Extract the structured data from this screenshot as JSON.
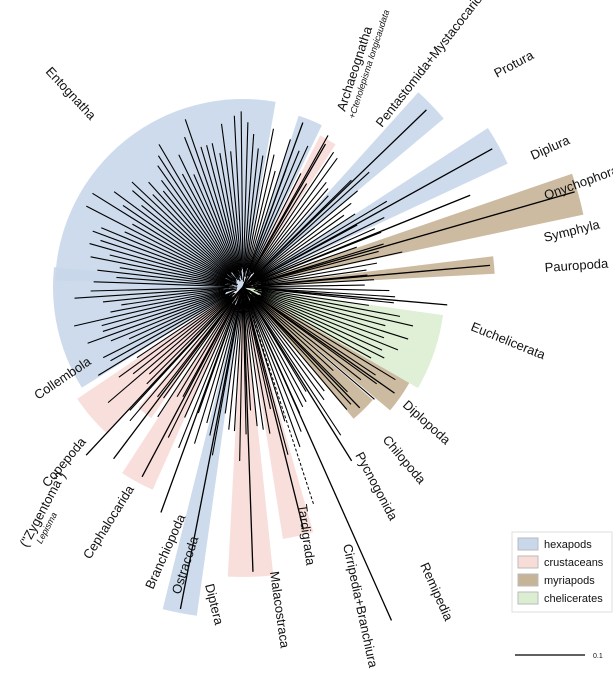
{
  "labels": [
    {
      "text": "Entognatha"
    },
    {
      "text": "Archaeognatha",
      "sub": "+Ctenolepisma longicaudata"
    },
    {
      "text": "Pentastomida+Mystacocarida"
    },
    {
      "text": "Protura"
    },
    {
      "text": "Diplura"
    },
    {
      "text": "Onychophora"
    },
    {
      "text": "Symphyla"
    },
    {
      "text": "Pauropoda"
    },
    {
      "text": "Euchelicerata"
    },
    {
      "text": "Diplopoda"
    },
    {
      "text": "Chilopoda"
    },
    {
      "text": "Pycnogonida"
    },
    {
      "text": "Remipedia"
    },
    {
      "text": "Cirripedia+Branchiura"
    },
    {
      "text": "Tardigrada"
    },
    {
      "text": "Malacostraca"
    },
    {
      "text": "Diptera"
    },
    {
      "text": "Ostracoda"
    },
    {
      "text": "Branchiopoda"
    },
    {
      "text": "Cephalocarida"
    },
    {
      "text": "(\"Zygentoma\")",
      "sub": "Lepisma"
    },
    {
      "text": "Copepoda"
    },
    {
      "text": "Collembola"
    }
  ],
  "legend": {
    "items": [
      {
        "name": "hexapods",
        "color": "#c8d7ea"
      },
      {
        "name": "crustaceans",
        "color": "#f7dcd8"
      },
      {
        "name": "myriapods",
        "color": "#c6b497"
      },
      {
        "name": "chelicerates",
        "color": "#dbeed2"
      }
    ]
  },
  "scale_bar": {
    "label": "0.1"
  }
}
